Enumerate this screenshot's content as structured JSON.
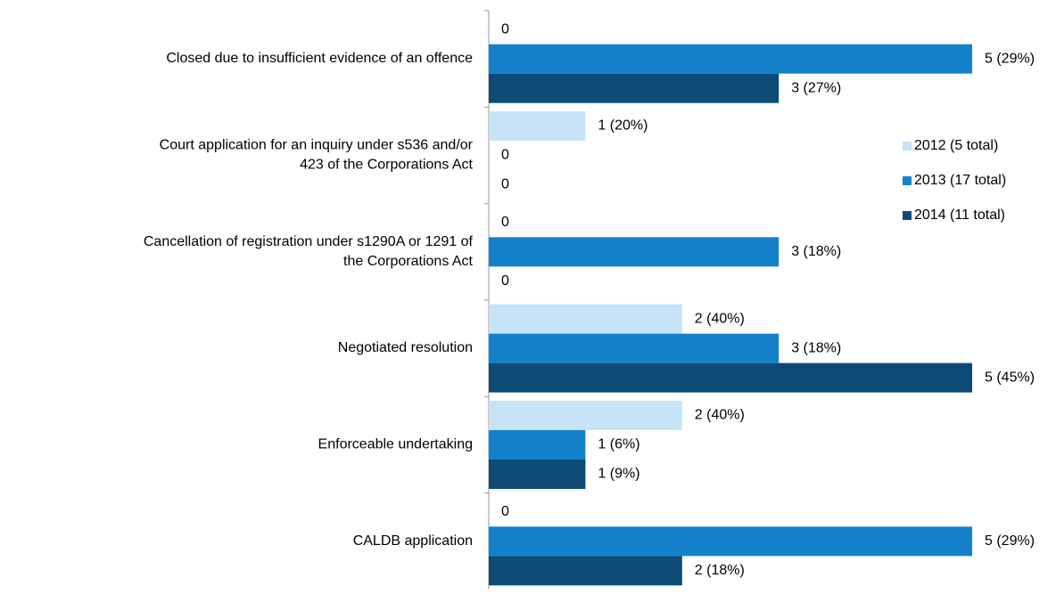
{
  "chart_data": {
    "type": "bar",
    "orientation": "horizontal",
    "categories": [
      "Closed due to insufficient evidence of an offence",
      "Court application for an inquiry under s536 and/or\n423 of the Corporations Act",
      "Cancellation of registration under s1290A or 1291 of\nthe Corporations Act",
      "Negotiated resolution",
      "Enforceable undertaking",
      "CALDB application"
    ],
    "series": [
      {
        "name": "2012 (5 total)",
        "color": "#c6e3f7",
        "values": [
          0,
          1,
          0,
          2,
          2,
          0
        ],
        "value_labels": [
          "0",
          "1 (20%)",
          "0",
          "2 (40%)",
          "2 (40%)",
          "0"
        ]
      },
      {
        "name": "2013 (17 total)",
        "color": "#1382cb",
        "values": [
          5,
          0,
          3,
          3,
          1,
          5
        ],
        "value_labels": [
          "5 (29%)",
          "0",
          "3 (18%)",
          "3 (18%)",
          "1 (6%)",
          "5 (29%)"
        ]
      },
      {
        "name": "2014 (11 total)",
        "color": "#0d4a76",
        "values": [
          3,
          0,
          0,
          5,
          1,
          2
        ],
        "value_labels": [
          "3 (27%)",
          "0",
          "0",
          "5 (45%)",
          "1 (9%)",
          "2 (18%)"
        ]
      }
    ],
    "xlim": [
      0,
      5
    ],
    "legend": "right"
  }
}
